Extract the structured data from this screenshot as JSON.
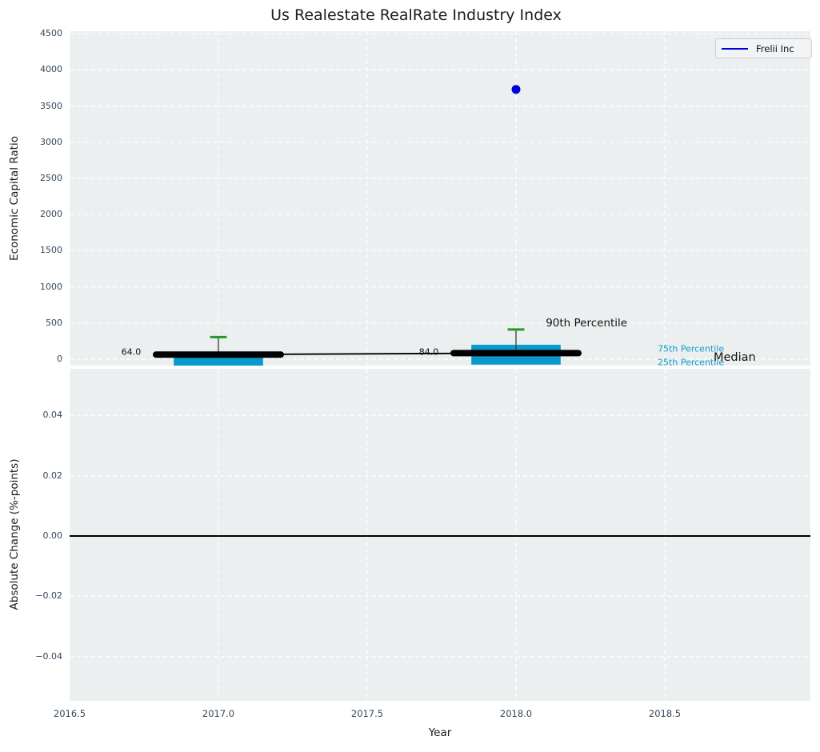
{
  "title": "Us Realestate RealRate Industry Index",
  "legend": {
    "label": "Frelii Inc",
    "line_color": "#0000dd"
  },
  "chart_data": {
    "type": "boxplot",
    "title": "Us Realestate RealRate Industry Index",
    "xlabel": "Year",
    "ylabel_top": "Economic Capital Ratio",
    "ylabel_bottom": "Absolute Change (%-points)",
    "x_axis": {
      "range": [
        2016.5,
        2019.0
      ],
      "ticks": [
        {
          "v": 2016.5,
          "label": "2016.5"
        },
        {
          "v": 2017.0,
          "label": "2017.0"
        },
        {
          "v": 2017.5,
          "label": "2017.5"
        },
        {
          "v": 2018.0,
          "label": "2018.0"
        },
        {
          "v": 2018.5,
          "label": "2018.5"
        }
      ]
    },
    "top_axis": {
      "range": [
        0,
        4500
      ],
      "grid": true,
      "ticks": [
        {
          "v": 0,
          "label": "0"
        },
        {
          "v": 500,
          "label": "500"
        },
        {
          "v": 1000,
          "label": "1000"
        },
        {
          "v": 1500,
          "label": "1500"
        },
        {
          "v": 2000,
          "label": "2000"
        },
        {
          "v": 2500,
          "label": "2500"
        },
        {
          "v": 3000,
          "label": "3000"
        },
        {
          "v": 3500,
          "label": "3500"
        },
        {
          "v": 4000,
          "label": "4000"
        },
        {
          "v": 4500,
          "label": "4500"
        }
      ]
    },
    "bottom_axis": {
      "range": [
        -0.055,
        0.055
      ],
      "grid": true,
      "zero_line": 0.0,
      "ticks": [
        {
          "v": 0.04,
          "label": "0.04"
        },
        {
          "v": 0.02,
          "label": "0.02"
        },
        {
          "v": 0.0,
          "label": "0.00"
        },
        {
          "v": -0.02,
          "label": "−0.02"
        },
        {
          "v": -0.04,
          "label": "−0.04"
        }
      ]
    },
    "boxes": [
      {
        "year": 2017,
        "median": 64,
        "p25": -95,
        "p75": 105,
        "p90": 305
      },
      {
        "year": 2018,
        "median": 84,
        "p25": -75,
        "p75": 200,
        "p90": 410
      }
    ],
    "series": [
      {
        "name": "Frelii Inc",
        "x": [
          2017,
          2018
        ],
        "y": [
          64,
          84
        ]
      }
    ],
    "outliers": [
      {
        "year": 2018,
        "value": 3730
      }
    ],
    "annotations": [
      {
        "text": "64.0",
        "year": 2016.74,
        "value": 95,
        "align": "right",
        "color": "#111111",
        "size": 11
      },
      {
        "text": "84.0",
        "year": 2017.74,
        "value": 105,
        "align": "right",
        "color": "#111111",
        "size": 11
      },
      {
        "text": "90th Percentile",
        "year": 2018.1,
        "value": 500,
        "align": "left",
        "color": "#111111",
        "size": 13.5
      },
      {
        "text": "75th Percentile",
        "year": 2018.476,
        "value": 140,
        "align": "left",
        "color": "#109bce",
        "size": 11
      },
      {
        "text": "25th Percentile",
        "year": 2018.476,
        "value": -40,
        "align": "left",
        "color": "#109bce",
        "size": 11
      },
      {
        "text": "Median",
        "year": 2018.664,
        "value": 25,
        "align": "left",
        "color": "#111111",
        "size": 14.5
      }
    ],
    "colors": {
      "box": "#0a9acc",
      "cap": "#289928",
      "whisker": "#3a3a3a",
      "line": "#000000",
      "outlier": "#0000dd",
      "grid": "#ffffff",
      "plot_bg": "#ebeff0",
      "tick_label": "#34465c"
    },
    "legend": {
      "position": "upper right",
      "entries": [
        "Frelii Inc"
      ]
    }
  }
}
